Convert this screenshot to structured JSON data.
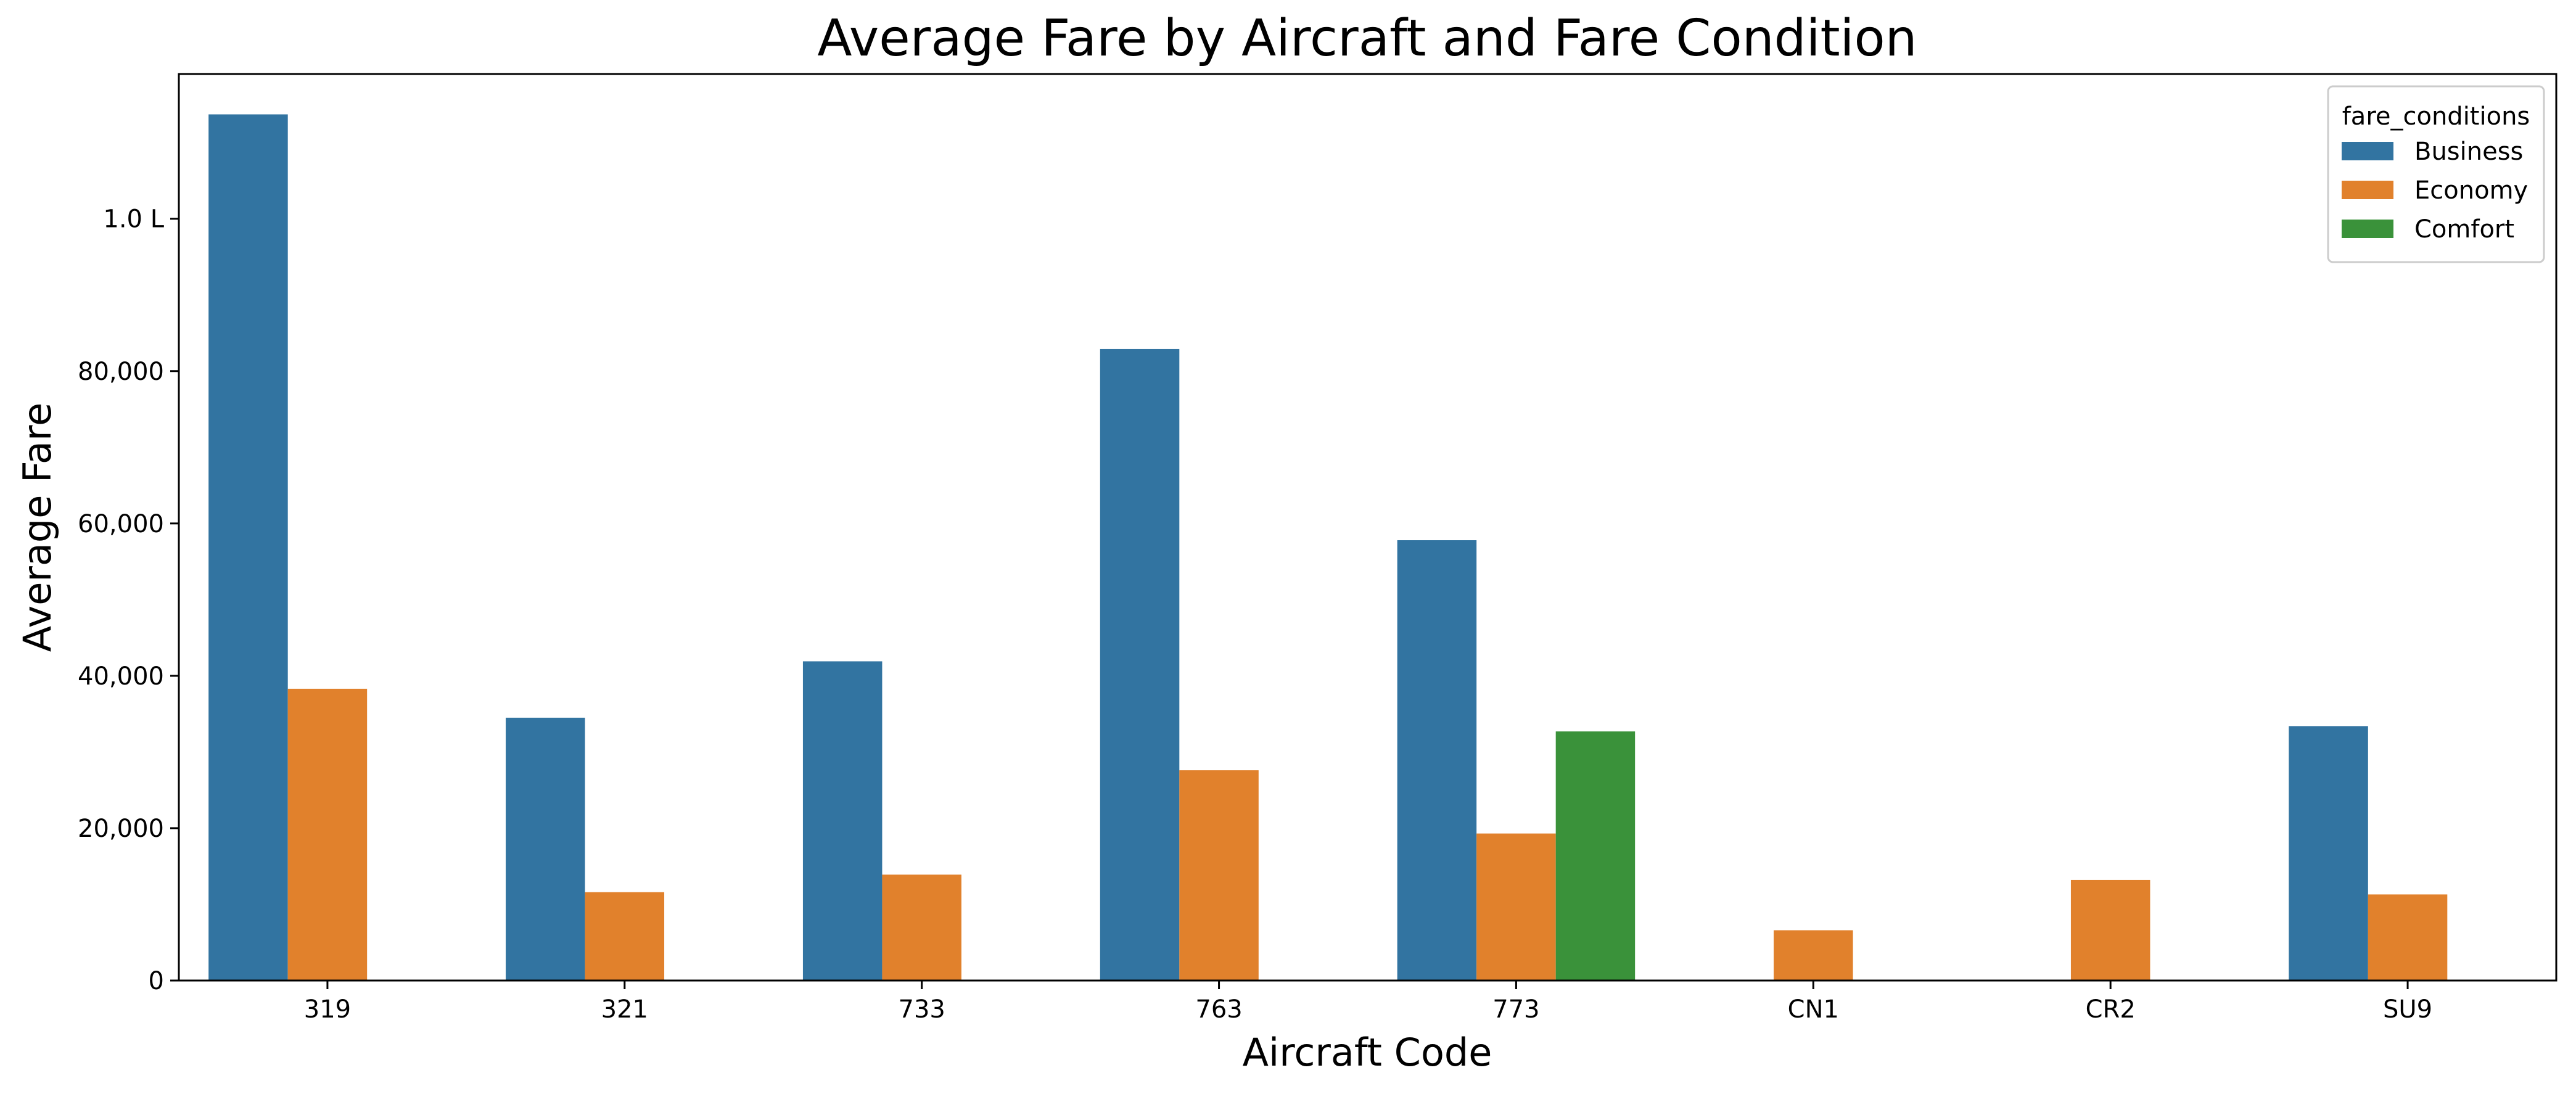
{
  "chart_data": {
    "type": "bar",
    "title": "Average Fare by Aircraft and Fare Condition",
    "xlabel": "Aircraft Code",
    "ylabel": "Average Fare",
    "categories": [
      "319",
      "321",
      "733",
      "763",
      "773",
      "CN1",
      "CR2",
      "SU9"
    ],
    "series": [
      {
        "name": "Business",
        "color": "#3274a1",
        "values": [
          113700,
          34500,
          41900,
          82900,
          57800,
          null,
          null,
          33400
        ]
      },
      {
        "name": "Economy",
        "color": "#e1812c",
        "values": [
          38300,
          11600,
          13900,
          27600,
          19300,
          6600,
          13200,
          11300
        ]
      },
      {
        "name": "Comfort",
        "color": "#3a923a",
        "values": [
          null,
          null,
          null,
          null,
          32700,
          null,
          null,
          null
        ]
      }
    ],
    "ylim": [
      0,
      119000
    ],
    "yticks": [
      {
        "value": 0,
        "label": "0"
      },
      {
        "value": 20000,
        "label": "20,000"
      },
      {
        "value": 40000,
        "label": "40,000"
      },
      {
        "value": 60000,
        "label": "60,000"
      },
      {
        "value": 80000,
        "label": "80,000"
      },
      {
        "value": 100000,
        "label": "1.0 L"
      }
    ],
    "legend": {
      "title": "fare_conditions",
      "placement": "top-right"
    },
    "grid": false
  }
}
